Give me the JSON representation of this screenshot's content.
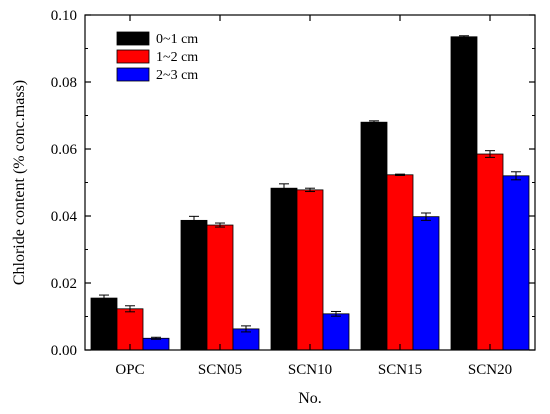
{
  "chart_data": {
    "type": "bar",
    "title": "",
    "xlabel": "No.",
    "ylabel": "Chloride content (% conc.mass)",
    "categories": [
      "OPC",
      "SCN05",
      "SCN10",
      "SCN15",
      "SCN20"
    ],
    "ylim": [
      0,
      0.1
    ],
    "yticks": [
      "0.00",
      "0.02",
      "0.04",
      "0.06",
      "0.08",
      "0.10"
    ],
    "grid": false,
    "legend_position": "top-left",
    "series": [
      {
        "name": "0~1 cm",
        "color": "#000000",
        "values": [
          0.0155,
          0.0387,
          0.0483,
          0.068,
          0.0935
        ],
        "errors": [
          0.0009,
          0.0012,
          0.0013,
          0.0004,
          0.0003
        ]
      },
      {
        "name": "1~2 cm",
        "color": "#ff0000",
        "values": [
          0.0123,
          0.0373,
          0.0478,
          0.0523,
          0.0585
        ],
        "errors": [
          0.0009,
          0.0006,
          0.0005,
          0.0002,
          0.001
        ]
      },
      {
        "name": "2~3 cm",
        "color": "#0000ff",
        "values": [
          0.0035,
          0.0063,
          0.0108,
          0.0398,
          0.052
        ],
        "errors": [
          0.0003,
          0.0009,
          0.0007,
          0.0011,
          0.0012
        ]
      }
    ]
  }
}
